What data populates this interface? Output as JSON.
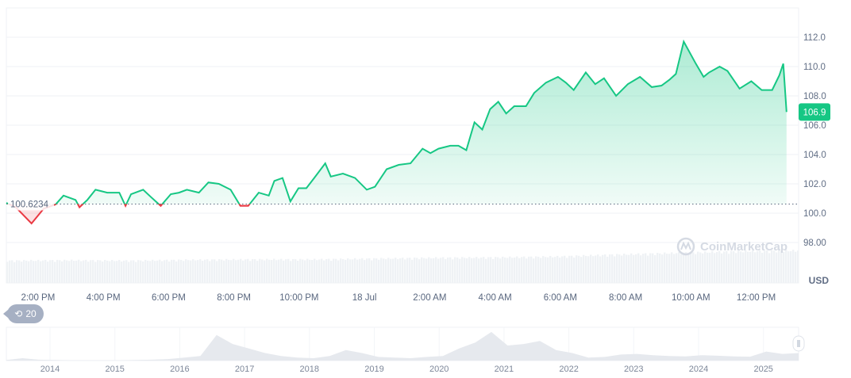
{
  "chart_data": {
    "type": "line",
    "currency": "USD",
    "baseline_label": "100.6234",
    "baseline_value": 100.6234,
    "current_value_label": "106.9",
    "ylim": [
      96.5,
      113.5
    ],
    "y_ticks": [
      "112.0",
      "110.0",
      "108.0",
      "106.0",
      "104.0",
      "102.0",
      "100.0",
      "98.00"
    ],
    "y_tick_values": [
      112,
      110,
      108,
      106,
      104,
      102,
      100,
      98
    ],
    "x_ticks": [
      "2:00 PM",
      "4:00 PM",
      "6:00 PM",
      "8:00 PM",
      "10:00 PM",
      "18 Jul",
      "2:00 AM",
      "4:00 AM",
      "6:00 AM",
      "8:00 AM",
      "10:00 AM",
      "12:00 PM"
    ],
    "x_hours": [
      14,
      16,
      18,
      20,
      22,
      24,
      26,
      28,
      30,
      32,
      34,
      36
    ],
    "xlim_hours": [
      13.03,
      37.3
    ],
    "series": [
      {
        "x_hours": [
          13.03,
          13.32,
          13.8,
          14.17,
          14.54,
          14.78,
          15.15,
          15.27,
          15.51,
          15.76,
          16.12,
          16.49,
          16.68,
          16.85,
          17.22,
          17.46,
          17.76,
          18.07,
          18.32,
          18.56,
          18.93,
          19.22,
          19.54,
          19.9,
          20.2,
          20.44,
          20.76,
          21.07,
          21.24,
          21.49,
          21.73,
          21.98,
          22.22,
          22.46,
          22.8,
          22.97,
          23.34,
          23.71,
          24.07,
          24.32,
          24.68,
          25.05,
          25.41,
          25.78,
          26.02,
          26.27,
          26.63,
          26.88,
          27.12,
          27.37,
          27.61,
          27.85,
          28.1,
          28.34,
          28.59,
          28.95,
          29.2,
          29.56,
          29.93,
          30.17,
          30.41,
          30.78,
          31.07,
          31.34,
          31.71,
          32.07,
          32.44,
          32.8,
          33.1,
          33.34,
          33.54,
          33.78,
          34.15,
          34.39,
          34.56,
          34.88,
          35.12,
          35.49,
          35.85,
          36.17,
          36.49,
          36.71,
          36.83,
          36.93
        ],
        "values": [
          100.7,
          100.4,
          99.3,
          100.3,
          100.6,
          101.2,
          100.9,
          100.4,
          100.9,
          101.6,
          101.4,
          101.4,
          100.5,
          101.3,
          101.6,
          101.1,
          100.5,
          101.3,
          101.4,
          101.6,
          101.4,
          102.1,
          102.0,
          101.6,
          100.5,
          100.5,
          101.4,
          101.2,
          102.2,
          102.4,
          100.8,
          101.7,
          101.7,
          102.4,
          103.4,
          102.5,
          102.7,
          102.4,
          101.6,
          101.8,
          103.0,
          103.3,
          103.4,
          104.4,
          104.1,
          104.4,
          104.6,
          104.6,
          104.3,
          106.2,
          105.7,
          107.1,
          107.6,
          106.8,
          107.3,
          107.3,
          108.2,
          108.9,
          109.3,
          108.9,
          108.4,
          109.6,
          108.8,
          109.2,
          108.0,
          108.8,
          109.3,
          108.6,
          108.7,
          109.1,
          109.5,
          111.7,
          110.2,
          109.3,
          109.6,
          110.0,
          109.7,
          108.5,
          109.0,
          108.4,
          108.4,
          109.4,
          110.2,
          106.9
        ]
      }
    ],
    "volume_relative": [
      0.55,
      0.56,
      0.55,
      0.57,
      0.58,
      0.58,
      0.6,
      0.62,
      0.63,
      0.65,
      0.7,
      0.74,
      0.78,
      0.8
    ],
    "navigator": {
      "x_ticks": [
        "2014",
        "2015",
        "2016",
        "2017",
        "2018",
        "2019",
        "2020",
        "2021",
        "2022",
        "2023",
        "2024",
        "2025"
      ],
      "relative_values": [
        0.02,
        0.08,
        0.03,
        0.02,
        0.01,
        0.01,
        0.01,
        0.01,
        0.02,
        0.03,
        0.05,
        0.1,
        0.15,
        0.85,
        0.55,
        0.4,
        0.25,
        0.15,
        0.1,
        0.08,
        0.15,
        0.35,
        0.25,
        0.12,
        0.1,
        0.08,
        0.12,
        0.15,
        0.4,
        0.6,
        0.95,
        0.5,
        0.55,
        0.65,
        0.35,
        0.25,
        0.1,
        0.12,
        0.2,
        0.22,
        0.18,
        0.15,
        0.14,
        0.18,
        0.16,
        0.14,
        0.13,
        0.3,
        0.22,
        0.25
      ]
    },
    "watermark": "CoinMarketCap",
    "grid": true,
    "colors": {
      "up": "#16c784",
      "down": "#ea3943",
      "grid": "#eff2f5",
      "volume": "#eff2f5"
    }
  },
  "events_badge": {
    "count": "20",
    "icon": "history-icon"
  }
}
